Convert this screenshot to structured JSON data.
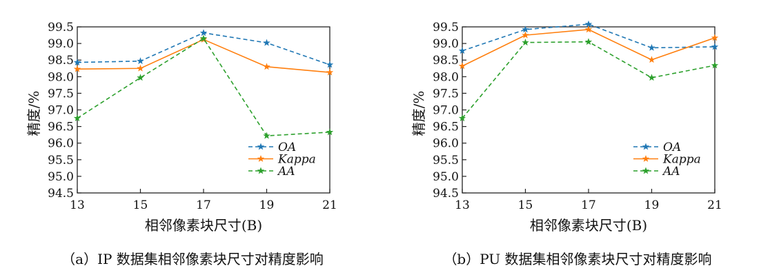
{
  "chart_data": [
    {
      "type": "line",
      "caption": "（a）IP 数据集相邻像素块尺寸对精度影响",
      "xlabel": "相邻像素块尺寸(B)",
      "ylabel": "精度/%",
      "x": [
        13,
        15,
        17,
        19,
        21
      ],
      "xticks": [
        "13",
        "15",
        "17",
        "19",
        "21"
      ],
      "ylim": [
        94.5,
        99.5
      ],
      "yticks": [
        "94.5",
        "95.0",
        "95.5",
        "96.0",
        "96.5",
        "97.0",
        "97.5",
        "98.0",
        "98.5",
        "99.0",
        "99.5"
      ],
      "grid": false,
      "legend_position": "lower-right",
      "series": [
        {
          "name": "OA",
          "color": "#1f77b4",
          "dash": true,
          "marker": "star",
          "values": [
            98.43,
            98.47,
            99.32,
            99.02,
            98.36
          ]
        },
        {
          "name": "Kappa",
          "color": "#ff7f0e",
          "dash": false,
          "marker": "star",
          "values": [
            98.23,
            98.25,
            99.12,
            98.3,
            98.13
          ]
        },
        {
          "name": "AA",
          "color": "#2ca02c",
          "dash": true,
          "marker": "star",
          "values": [
            96.75,
            97.97,
            99.15,
            96.22,
            96.33
          ]
        }
      ]
    },
    {
      "type": "line",
      "caption": "（b）PU 数据集相邻像素块尺寸对精度影响",
      "xlabel": "相邻像素块尺寸(B)",
      "ylabel": "精度/%",
      "x": [
        13,
        15,
        17,
        19,
        21
      ],
      "xticks": [
        "13",
        "15",
        "17",
        "19",
        "21"
      ],
      "ylim": [
        94.5,
        99.5
      ],
      "yticks": [
        "94.5",
        "95.0",
        "95.5",
        "96.0",
        "96.5",
        "97.0",
        "97.5",
        "98.0",
        "98.5",
        "99.0",
        "99.5"
      ],
      "grid": false,
      "legend_position": "lower-right",
      "series": [
        {
          "name": "OA",
          "color": "#1f77b4",
          "dash": true,
          "marker": "star",
          "values": [
            98.78,
            99.42,
            99.58,
            98.87,
            98.9
          ]
        },
        {
          "name": "Kappa",
          "color": "#ff7f0e",
          "dash": false,
          "marker": "star",
          "values": [
            98.32,
            99.25,
            99.42,
            98.51,
            99.17
          ]
        },
        {
          "name": "AA",
          "color": "#2ca02c",
          "dash": true,
          "marker": "star",
          "values": [
            96.75,
            99.03,
            99.05,
            97.97,
            98.34
          ]
        }
      ]
    }
  ]
}
